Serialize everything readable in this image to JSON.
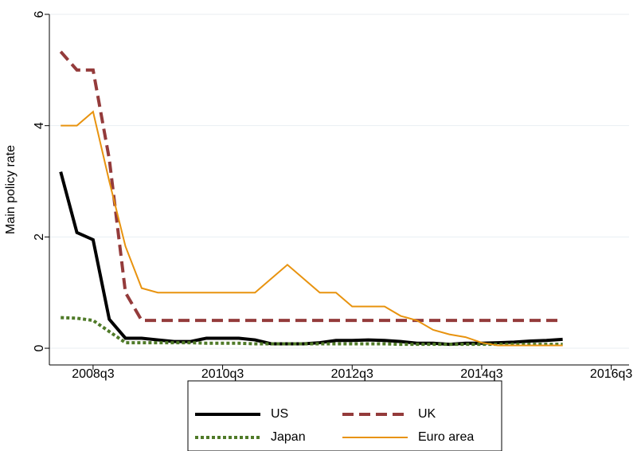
{
  "chart_data": {
    "type": "line",
    "y_label": "Main policy rate",
    "x": [
      192,
      193,
      194,
      195,
      196,
      197,
      198,
      199,
      200,
      201,
      202,
      203,
      204,
      205,
      206,
      207,
      208,
      209,
      210,
      211,
      212,
      213,
      214,
      215,
      216,
      217,
      218,
      219,
      220,
      221,
      222,
      223
    ],
    "xlim": [
      191.3,
      227.1
    ],
    "xticks": [
      {
        "value": 194,
        "label": "2008q3"
      },
      {
        "value": 202,
        "label": "2010q3"
      },
      {
        "value": 210,
        "label": "2012q3"
      },
      {
        "value": 218,
        "label": "2014q3"
      },
      {
        "value": 226,
        "label": "2016q3"
      }
    ],
    "ylim": [
      -0.3,
      6
    ],
    "yticks": [
      0,
      2,
      4,
      6
    ],
    "grid": true,
    "series": [
      {
        "name": "US",
        "color": "#000000",
        "dash": "solid",
        "width": 4,
        "values": [
          3.17,
          2.08,
          1.95,
          0.52,
          0.18,
          0.18,
          0.15,
          0.12,
          0.12,
          0.18,
          0.18,
          0.18,
          0.15,
          0.08,
          0.08,
          0.08,
          0.1,
          0.14,
          0.14,
          0.15,
          0.14,
          0.12,
          0.09,
          0.09,
          0.07,
          0.09,
          0.09,
          0.1,
          0.11,
          0.13,
          0.14,
          0.16
        ]
      },
      {
        "name": "UK",
        "color": "#943b3b",
        "dash": "dashed",
        "width": 4,
        "values": [
          5.33,
          5.0,
          5.0,
          3.4,
          1.0,
          0.5,
          0.5,
          0.5,
          0.5,
          0.5,
          0.5,
          0.5,
          0.5,
          0.5,
          0.5,
          0.5,
          0.5,
          0.5,
          0.5,
          0.5,
          0.5,
          0.5,
          0.5,
          0.5,
          0.5,
          0.5,
          0.5,
          0.5,
          0.5,
          0.5,
          0.5,
          0.5
        ]
      },
      {
        "name": "Japan",
        "color": "#4f7a28",
        "dash": "dotted",
        "width": 4,
        "values": [
          0.55,
          0.54,
          0.5,
          0.3,
          0.1,
          0.1,
          0.1,
          0.1,
          0.1,
          0.09,
          0.09,
          0.09,
          0.08,
          0.08,
          0.08,
          0.08,
          0.08,
          0.08,
          0.08,
          0.08,
          0.08,
          0.07,
          0.07,
          0.07,
          0.07,
          0.07,
          0.07,
          0.07,
          0.07,
          0.07,
          0.07,
          0.07
        ]
      },
      {
        "name": "Euro area",
        "color": "#e8930f",
        "dash": "solid",
        "width": 2,
        "values": [
          4.0,
          4.0,
          4.25,
          3.0,
          1.83,
          1.08,
          1.0,
          1.0,
          1.0,
          1.0,
          1.0,
          1.0,
          1.0,
          1.25,
          1.5,
          1.25,
          1.0,
          1.0,
          0.75,
          0.75,
          0.75,
          0.58,
          0.5,
          0.33,
          0.25,
          0.2,
          0.1,
          0.05,
          0.05,
          0.05,
          0.05,
          0.05
        ]
      }
    ]
  }
}
